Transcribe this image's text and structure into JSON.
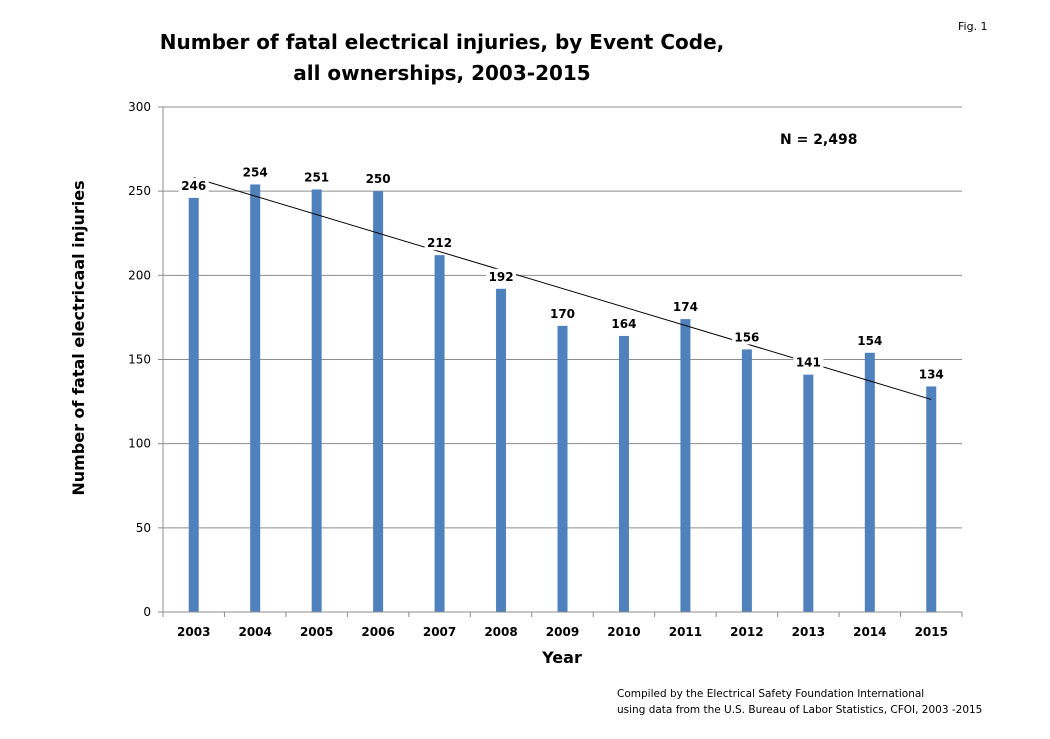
{
  "fig_label": "Fig. 1",
  "chart_data": {
    "type": "bar",
    "title_lines": [
      "Number of fatal electrical injuries, by Event Code,",
      "all ownerships, 2003-2015"
    ],
    "xlabel": "Year",
    "ylabel": "Number of fatal electricaal injuries",
    "categories": [
      "2003",
      "2004",
      "2005",
      "2006",
      "2007",
      "2008",
      "2009",
      "2010",
      "2011",
      "2012",
      "2013",
      "2014",
      "2015"
    ],
    "values": [
      246,
      254,
      251,
      250,
      212,
      192,
      170,
      164,
      174,
      156,
      141,
      154,
      134
    ],
    "data_labels": [
      "246",
      "254",
      "251",
      "250",
      "212",
      "192",
      "170",
      "164",
      "174",
      "156",
      "141",
      "154",
      "134"
    ],
    "ylim": [
      0,
      300
    ],
    "yticks": [
      0,
      50,
      100,
      150,
      200,
      250,
      300
    ],
    "ytick_labels": [
      "0",
      "50",
      "100",
      "150",
      "200",
      "250",
      "300"
    ],
    "grid": true,
    "trendline": "linear",
    "annotation": "N = 2,498",
    "bar_color": "#4F81BD",
    "footnote": [
      "Compiled by the Electrical Safety Foundation International",
      "using data from the U.S. Bureau of Labor Statistics, CFOI, 2003 -2015"
    ]
  }
}
